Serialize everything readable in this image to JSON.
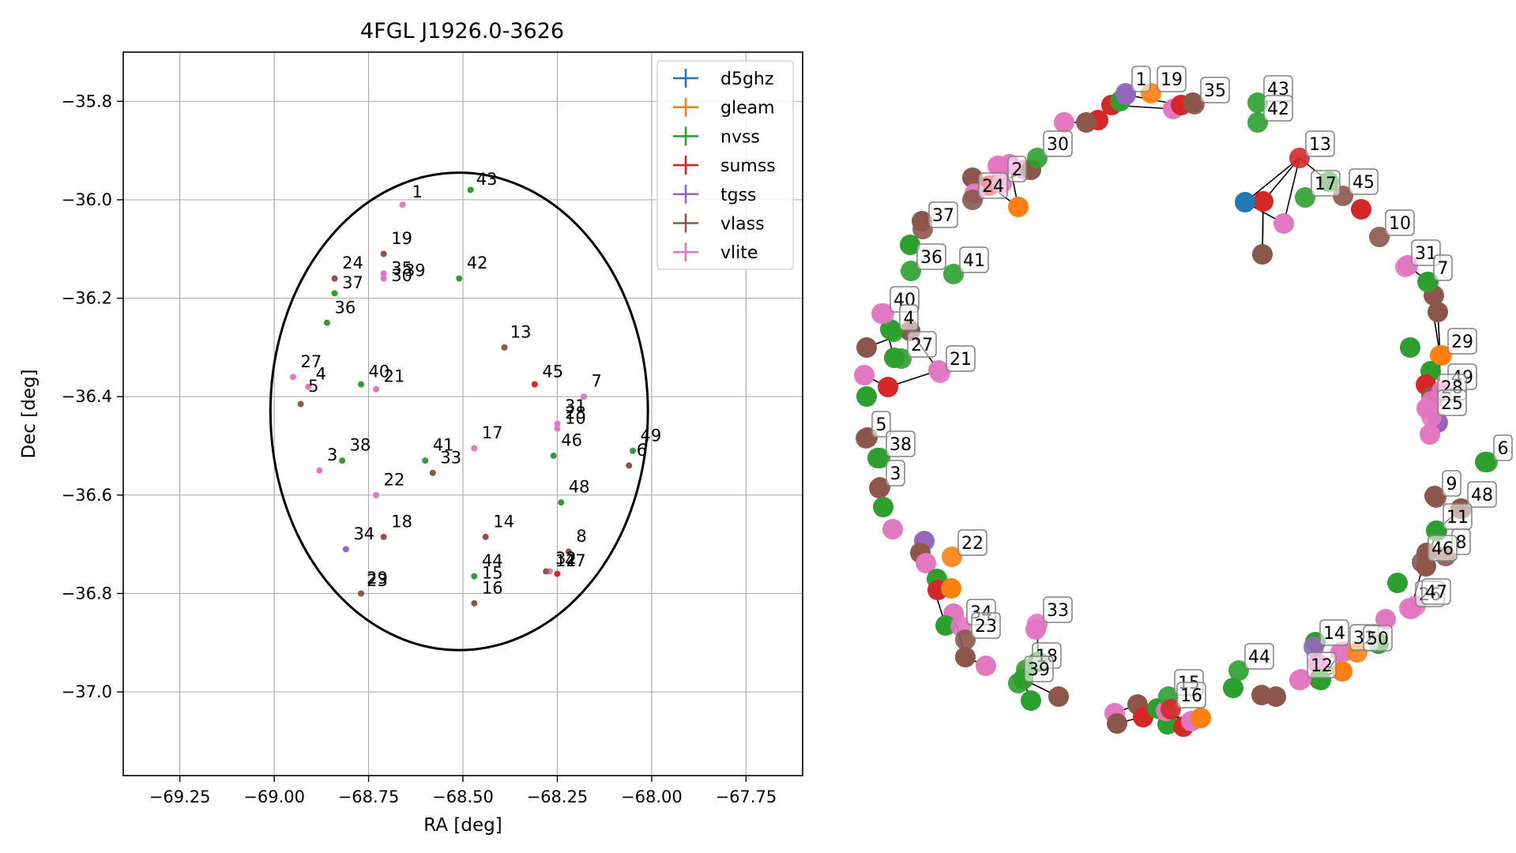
{
  "colors": {
    "d5ghz": "#1f77b4",
    "gleam": "#ff7f0e",
    "nvss": "#2ca02c",
    "sumss": "#d62728",
    "tgss": "#9467bd",
    "vlass": "#8c564b",
    "vlite": "#e377c2"
  },
  "chart_data": [
    {
      "type": "scatter",
      "title": "4FGL J1926.0-3626",
      "xlabel": "RA [deg]",
      "ylabel": "Dec [deg]",
      "xlim": [
        -69.4,
        -67.6
      ],
      "ylim": [
        -37.17,
        -35.7
      ],
      "xticks": [
        -69.25,
        -69.0,
        -68.75,
        -68.5,
        -68.25,
        -68.0,
        -67.75
      ],
      "xtick_labels": [
        "−69.25",
        "−69.00",
        "−68.75",
        "−68.50",
        "−68.25",
        "−68.00",
        "−67.75"
      ],
      "yticks": [
        -35.8,
        -36.0,
        -36.2,
        -36.4,
        -36.6,
        -36.8,
        -37.0
      ],
      "ytick_labels": [
        "−35.8",
        "−36.0",
        "−36.2",
        "−36.4",
        "−36.6",
        "−36.8",
        "−37.0"
      ],
      "grid": true,
      "legend": "top-right",
      "legend_entries": [
        "d5ghz",
        "gleam",
        "nvss",
        "sumss",
        "tgss",
        "vlass",
        "vlite"
      ],
      "ellipse": {
        "center": [
          -68.51,
          -36.43
        ],
        "semi_x": 0.5,
        "semi_y": 0.485
      },
      "sources": [
        {
          "id": "1",
          "x": -68.66,
          "y": -36.01,
          "series": "vlite"
        },
        {
          "id": "3",
          "x": -68.88,
          "y": -36.55,
          "series": "vlite"
        },
        {
          "id": "4",
          "x": -68.91,
          "y": -36.38,
          "series": "vlite"
        },
        {
          "id": "5",
          "x": -68.93,
          "y": -36.415,
          "series": "vlass"
        },
        {
          "id": "6",
          "x": -68.06,
          "y": -36.54,
          "series": "vlass"
        },
        {
          "id": "7",
          "x": -68.18,
          "y": -36.4,
          "series": "vlite"
        },
        {
          "id": "8",
          "x": -68.22,
          "y": -36.715,
          "series": "vlass"
        },
        {
          "id": "13",
          "x": -68.39,
          "y": -36.3,
          "series": "vlass"
        },
        {
          "id": "14",
          "x": -68.44,
          "y": -36.685,
          "series": "vlass"
        },
        {
          "id": "15",
          "x": -68.47,
          "y": -36.765,
          "series": "nvss"
        },
        {
          "id": "16",
          "x": -68.47,
          "y": -36.82,
          "series": "vlass"
        },
        {
          "id": "17",
          "x": -68.47,
          "y": -36.505,
          "series": "vlite"
        },
        {
          "id": "18",
          "x": -68.71,
          "y": -36.685,
          "series": "vlass"
        },
        {
          "id": "19",
          "x": -68.71,
          "y": -36.11,
          "series": "vlass"
        },
        {
          "id": "21",
          "x": -68.73,
          "y": -36.385,
          "series": "vlite"
        },
        {
          "id": "22",
          "x": -68.73,
          "y": -36.6,
          "series": "vlite"
        },
        {
          "id": "23",
          "x": -68.77,
          "y": -36.8,
          "series": "vlass"
        },
        {
          "id": "24",
          "x": -68.84,
          "y": -36.16,
          "series": "vlass"
        },
        {
          "id": "27",
          "x": -68.95,
          "y": -36.36,
          "series": "vlite"
        },
        {
          "id": "30",
          "x": -68.71,
          "y": -36.16,
          "series": "vlite"
        },
        {
          "id": "31",
          "x": -68.25,
          "y": -36.455,
          "series": "vlite"
        },
        {
          "id": "33",
          "x": -68.58,
          "y": -36.555,
          "series": "vlass"
        },
        {
          "id": "34",
          "x": -68.81,
          "y": -36.71,
          "series": "tgss"
        },
        {
          "id": "35",
          "x": -68.71,
          "y": -36.15,
          "series": "vlite"
        },
        {
          "id": "36",
          "x": -68.86,
          "y": -36.25,
          "series": "nvss"
        },
        {
          "id": "37",
          "x": -68.84,
          "y": -36.19,
          "series": "nvss"
        },
        {
          "id": "38",
          "x": -68.82,
          "y": -36.53,
          "series": "nvss"
        },
        {
          "id": "40",
          "x": -68.77,
          "y": -36.375,
          "series": "nvss"
        },
        {
          "id": "41",
          "x": -68.6,
          "y": -36.53,
          "series": "nvss"
        },
        {
          "id": "42",
          "x": -68.51,
          "y": -36.16,
          "series": "nvss"
        },
        {
          "id": "43",
          "x": -68.48,
          "y": -35.98,
          "series": "nvss"
        },
        {
          "id": "44",
          "x": -68.27,
          "y": -36.755,
          "series": "vlite"
        },
        {
          "id": "45",
          "x": -68.31,
          "y": -36.375,
          "series": "sumss"
        },
        {
          "id": "46",
          "x": -68.26,
          "y": -36.52,
          "series": "nvss"
        },
        {
          "id": "47",
          "x": -68.25,
          "y": -36.76,
          "series": "sumss"
        },
        {
          "id": "48",
          "x": -68.24,
          "y": -36.615,
          "series": "nvss"
        },
        {
          "id": "49",
          "x": -68.05,
          "y": -36.51,
          "series": "nvss"
        },
        {
          "id": "-",
          "x": -68.25,
          "y": -36.465,
          "series": "vlite"
        },
        {
          "id": "-",
          "x": -68.28,
          "y": -36.755,
          "series": "vlass"
        }
      ],
      "labels": [
        {
          "text": "43",
          "x": -68.465,
          "y": -35.97
        },
        {
          "text": "1",
          "x": -68.635,
          "y": -35.995
        },
        {
          "text": "19",
          "x": -68.69,
          "y": -36.09
        },
        {
          "text": "35",
          "x": -68.69,
          "y": -36.15
        },
        {
          "text": "30",
          "x": -68.69,
          "y": -36.165
        },
        {
          "text": "39",
          "x": -68.655,
          "y": -36.155
        },
        {
          "text": "24",
          "x": -68.82,
          "y": -36.14
        },
        {
          "text": "37",
          "x": -68.82,
          "y": -36.18
        },
        {
          "text": "42",
          "x": -68.49,
          "y": -36.14
        },
        {
          "text": "36",
          "x": -68.84,
          "y": -36.23
        },
        {
          "text": "13",
          "x": -68.375,
          "y": -36.28
        },
        {
          "text": "27",
          "x": -68.93,
          "y": -36.34
        },
        {
          "text": "4",
          "x": -68.89,
          "y": -36.365
        },
        {
          "text": "40",
          "x": -68.75,
          "y": -36.36
        },
        {
          "text": "21",
          "x": -68.71,
          "y": -36.37
        },
        {
          "text": "45",
          "x": -68.29,
          "y": -36.36
        },
        {
          "text": "7",
          "x": -68.16,
          "y": -36.38
        },
        {
          "text": "5",
          "x": -68.91,
          "y": -36.39
        },
        {
          "text": "31",
          "x": -68.23,
          "y": -36.43
        },
        {
          "text": "28",
          "x": -68.23,
          "y": -36.445
        },
        {
          "text": "10",
          "x": -68.23,
          "y": -36.455
        },
        {
          "text": "17",
          "x": -68.45,
          "y": -36.485
        },
        {
          "text": "46",
          "x": -68.24,
          "y": -36.5
        },
        {
          "text": "49",
          "x": -68.03,
          "y": -36.49
        },
        {
          "text": "6",
          "x": -68.04,
          "y": -36.52
        },
        {
          "text": "3",
          "x": -68.86,
          "y": -36.53
        },
        {
          "text": "38",
          "x": -68.8,
          "y": -36.51
        },
        {
          "text": "41",
          "x": -68.58,
          "y": -36.51
        },
        {
          "text": "33",
          "x": -68.56,
          "y": -36.535
        },
        {
          "text": "22",
          "x": -68.71,
          "y": -36.58
        },
        {
          "text": "48",
          "x": -68.22,
          "y": -36.595
        },
        {
          "text": "18",
          "x": -68.69,
          "y": -36.665
        },
        {
          "text": "14",
          "x": -68.42,
          "y": -36.665
        },
        {
          "text": "34",
          "x": -68.79,
          "y": -36.69
        },
        {
          "text": "8",
          "x": -68.2,
          "y": -36.695
        },
        {
          "text": "32",
          "x": -68.255,
          "y": -36.74
        },
        {
          "text": "12",
          "x": -68.255,
          "y": -36.745
        },
        {
          "text": "47",
          "x": -68.23,
          "y": -36.745
        },
        {
          "text": "44",
          "x": -68.45,
          "y": -36.745
        },
        {
          "text": "15",
          "x": -68.45,
          "y": -36.77
        },
        {
          "text": "29",
          "x": -68.755,
          "y": -36.78
        },
        {
          "text": "23",
          "x": -68.755,
          "y": -36.785
        },
        {
          "text": "16",
          "x": -68.45,
          "y": -36.8
        }
      ]
    },
    {
      "type": "graph",
      "nodes": [
        {
          "id": "1",
          "series": "tgss",
          "label": true
        },
        {
          "id": "19",
          "series": "gleam",
          "label": true
        },
        {
          "id": "35",
          "series": "vlass",
          "label": true
        },
        {
          "id": "43",
          "series": "nvss",
          "label": true
        },
        {
          "id": "42",
          "series": "nvss",
          "label": true
        },
        {
          "id": "2",
          "series": "vlite",
          "label": true
        },
        {
          "id": "30",
          "series": "nvss",
          "label": true
        },
        {
          "id": "24",
          "series": "vlass",
          "label": true
        },
        {
          "id": "37",
          "series": "vlass",
          "label": true
        },
        {
          "id": "36",
          "series": "nvss",
          "label": true
        },
        {
          "id": "41",
          "series": "nvss",
          "label": true
        },
        {
          "id": "13",
          "series": "sumss",
          "label": true
        },
        {
          "id": "45",
          "series": "vlass",
          "label": true
        },
        {
          "id": "17",
          "series": "nvss",
          "label": true
        },
        {
          "id": "10",
          "series": "vlass",
          "label": true
        },
        {
          "id": "31",
          "series": "vlite",
          "label": true
        },
        {
          "id": "7",
          "series": "nvss",
          "label": true
        },
        {
          "id": "40",
          "series": "vlite",
          "label": true
        },
        {
          "id": "4",
          "series": "nvss",
          "label": true
        },
        {
          "id": "21",
          "series": "vlite",
          "label": true
        },
        {
          "id": "27",
          "series": "nvss",
          "label": true
        },
        {
          "id": "29",
          "series": "gleam",
          "label": true
        },
        {
          "id": "49",
          "series": "vlite",
          "label": true
        },
        {
          "id": "28",
          "series": "vlite",
          "label": true
        },
        {
          "id": "25",
          "series": "vlite",
          "label": true
        },
        {
          "id": "5",
          "series": "vlass",
          "label": true
        },
        {
          "id": "38",
          "series": "nvss",
          "label": true
        },
        {
          "id": "6",
          "series": "nvss",
          "label": true
        },
        {
          "id": "9",
          "series": "vlass",
          "label": true
        },
        {
          "id": "48",
          "series": "vlass",
          "label": true
        },
        {
          "id": "3",
          "series": "vlass",
          "label": true
        },
        {
          "id": "11",
          "series": "nvss",
          "label": true
        },
        {
          "id": "8",
          "series": "vlass",
          "label": true
        },
        {
          "id": "46",
          "series": "vlass",
          "label": true
        },
        {
          "id": "22",
          "series": "gleam",
          "label": true
        },
        {
          "id": "26",
          "series": "vlite",
          "label": true
        },
        {
          "id": "47",
          "series": "vlite",
          "label": true
        },
        {
          "id": "34",
          "series": "vlite",
          "label": true
        },
        {
          "id": "33",
          "series": "vlite",
          "label": true
        },
        {
          "id": "23",
          "series": "vlass",
          "label": true
        },
        {
          "id": "18",
          "series": "nvss",
          "label": true
        },
        {
          "id": "39",
          "series": "nvss",
          "label": true
        },
        {
          "id": "14",
          "series": "tgss",
          "label": true
        },
        {
          "id": "32",
          "series": "vlite",
          "label": true
        },
        {
          "id": "50",
          "series": "gleam",
          "label": true
        },
        {
          "id": "44",
          "series": "nvss",
          "label": true
        },
        {
          "id": "12",
          "series": "vlite",
          "label": true
        },
        {
          "id": "15",
          "series": "nvss",
          "label": true
        },
        {
          "id": "16",
          "series": "sumss",
          "label": true
        }
      ]
    }
  ]
}
